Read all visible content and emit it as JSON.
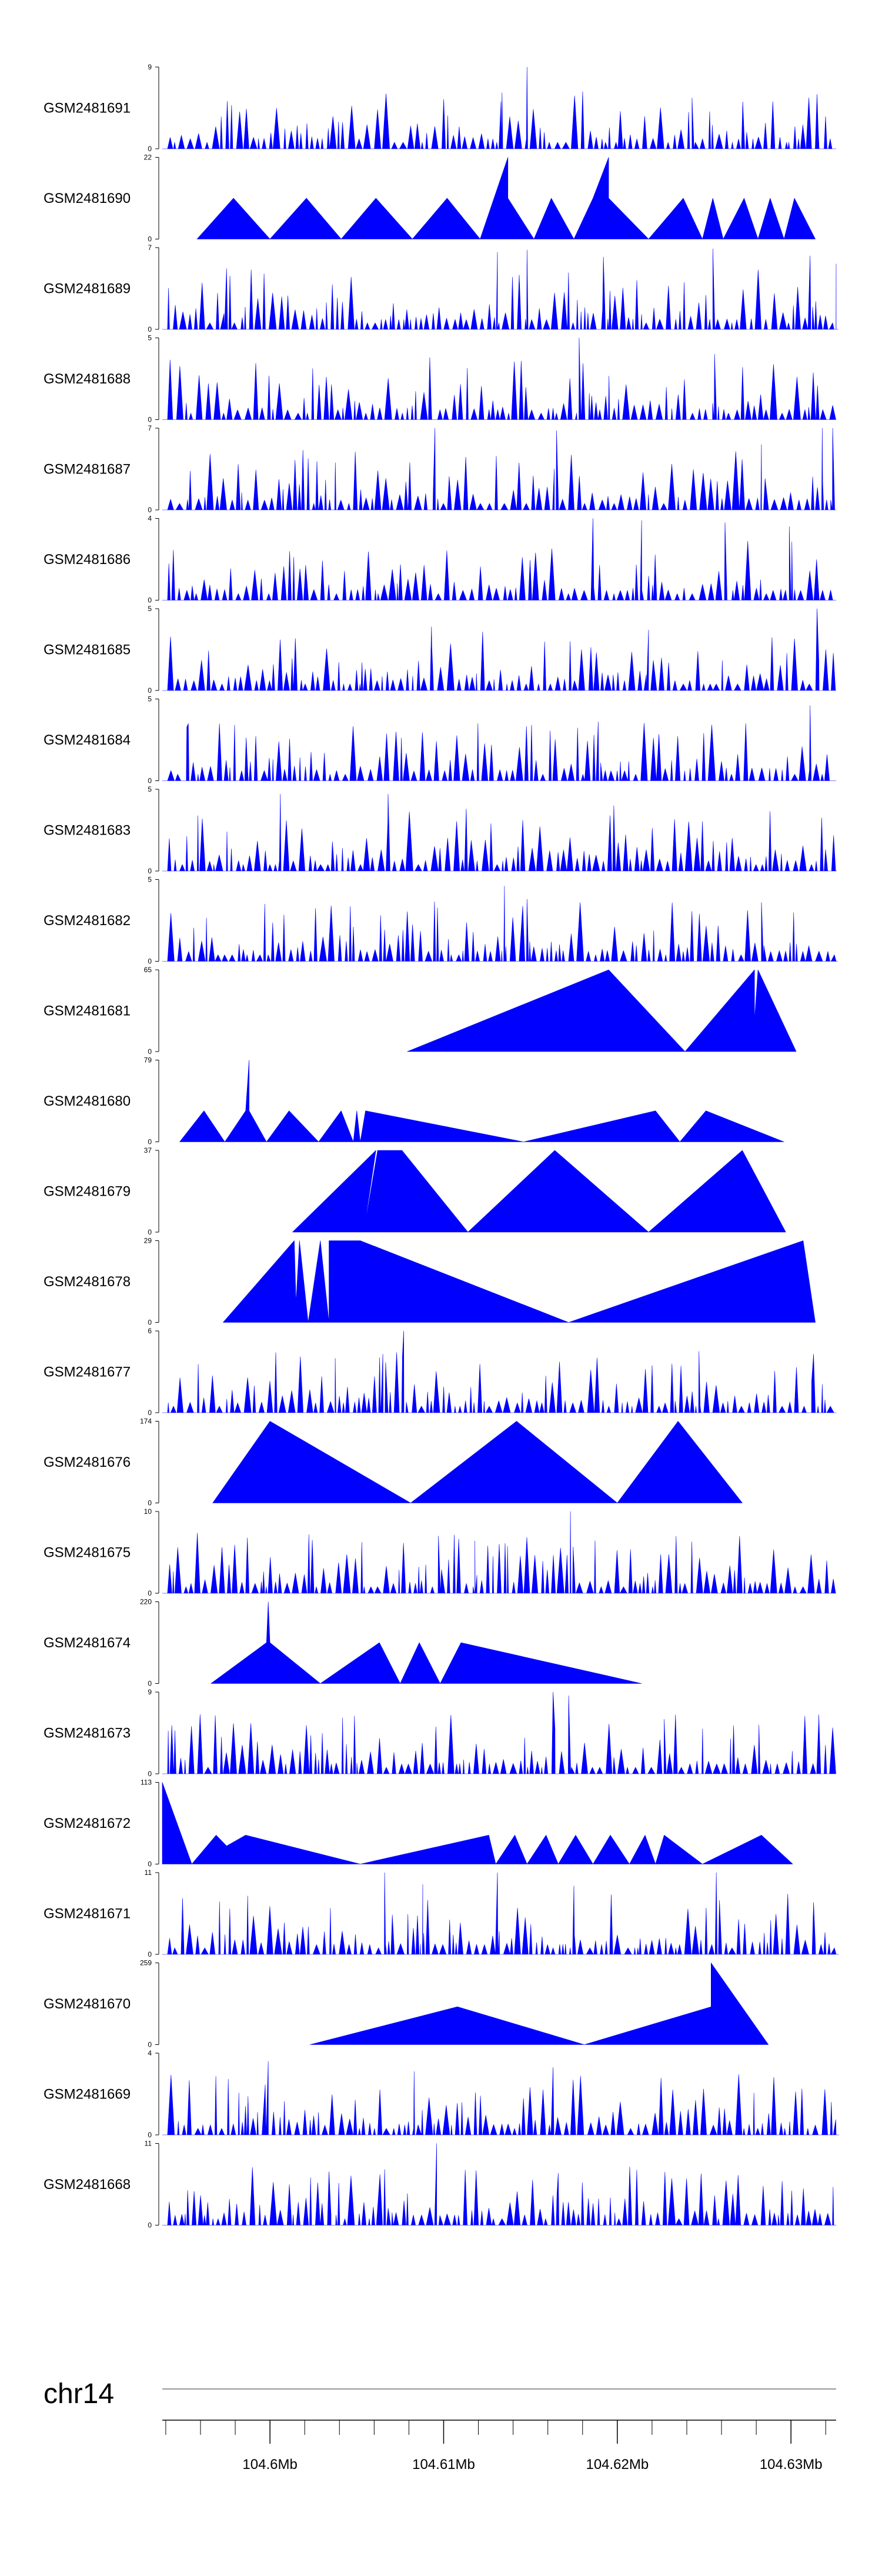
{
  "chart_data": {
    "type": "area",
    "title": "",
    "chromosome": "chr14",
    "x_unit": "Mb",
    "x_range": [
      104.5938,
      104.6326
    ],
    "x_ticks": [
      "104.6Mb",
      "104.61Mb",
      "104.62Mb",
      "104.63Mb"
    ],
    "x_tick_values": [
      104.6,
      104.61,
      104.62,
      104.63
    ],
    "minor_tick_step": 0.002,
    "colors": {
      "signal": "#0000ff",
      "axis": "#000000",
      "ideogram": "#999999"
    },
    "tracks": [
      {
        "name": "GSM2481691",
        "ymax": 9,
        "y0": "0",
        "y1": "9",
        "style": "noisy",
        "seed": 11,
        "peaks": [
          [
            104.6133,
            5.2
          ],
          [
            104.6148,
            9
          ],
          [
            104.6243,
            5.6
          ],
          [
            104.6315,
            6
          ]
        ]
      },
      {
        "name": "GSM2481690",
        "ymax": 22,
        "y0": "0",
        "y1": "22",
        "style": "triangles",
        "points": [
          [
            104.5958,
            0
          ],
          [
            104.5979,
            11
          ],
          [
            104.6,
            0
          ],
          [
            104.6021,
            11
          ],
          [
            104.6041,
            0
          ],
          [
            104.6061,
            11
          ],
          [
            104.6082,
            0
          ],
          [
            104.6102,
            11
          ],
          [
            104.6121,
            0
          ],
          [
            104.6137,
            22
          ],
          [
            104.6137,
            11
          ],
          [
            104.6152,
            0
          ],
          [
            104.6162,
            11
          ],
          [
            104.6175,
            0
          ],
          [
            104.6186,
            11
          ],
          [
            104.6195,
            22
          ],
          [
            104.6195,
            11
          ],
          [
            104.6218,
            0
          ],
          [
            104.6238,
            11
          ],
          [
            104.6249,
            0
          ],
          [
            104.6255,
            11
          ],
          [
            104.6261,
            0
          ],
          [
            104.6273,
            11
          ],
          [
            104.6281,
            0
          ],
          [
            104.6288,
            11
          ],
          [
            104.6296,
            0
          ],
          [
            104.6302,
            11
          ],
          [
            104.6314,
            0
          ]
        ]
      },
      {
        "name": "GSM2481689",
        "ymax": 7,
        "y0": "0",
        "y1": "7",
        "style": "noisy",
        "seed": 23,
        "peaks": [
          [
            104.5975,
            5.2
          ],
          [
            104.6131,
            6.6
          ],
          [
            104.6148,
            6.8
          ],
          [
            104.6192,
            6.2
          ],
          [
            104.6255,
            6.9
          ],
          [
            104.6311,
            6.3
          ],
          [
            104.6326,
            5.6
          ]
        ]
      },
      {
        "name": "GSM2481688",
        "ymax": 5,
        "y0": "0",
        "y1": "5",
        "style": "noisy",
        "seed": 37,
        "peaks": [
          [
            104.6178,
            5
          ],
          [
            104.6092,
            3.8
          ],
          [
            104.6256,
            4
          ]
        ]
      },
      {
        "name": "GSM2481687",
        "ymax": 7,
        "y0": "0",
        "y1": "7",
        "style": "noisy",
        "seed": 41,
        "peaks": [
          [
            104.6095,
            7
          ],
          [
            104.6165,
            6.8
          ],
          [
            104.6318,
            7
          ],
          [
            104.6324,
            7
          ],
          [
            104.6283,
            5.6
          ]
        ]
      },
      {
        "name": "GSM2481686",
        "ymax": 4,
        "y0": "0",
        "y1": "4",
        "style": "noisy",
        "seed": 53,
        "peaks": [
          [
            104.6186,
            4
          ],
          [
            104.6214,
            3.9
          ],
          [
            104.6262,
            3.8
          ],
          [
            104.6299,
            3.6
          ]
        ]
      },
      {
        "name": "GSM2481685",
        "ymax": 5,
        "y0": "0",
        "y1": "5",
        "style": "noisy",
        "seed": 67,
        "peaks": [
          [
            104.6315,
            5
          ],
          [
            104.6093,
            3.9
          ],
          [
            104.6218,
            3.7
          ]
        ]
      },
      {
        "name": "GSM2481684",
        "ymax": 5,
        "y0": "0",
        "y1": "5",
        "style": "noisy",
        "seed": 71,
        "peaks": [
          [
            104.6311,
            4.6
          ],
          [
            104.5953,
            3.5
          ],
          [
            104.6189,
            3.6
          ]
        ]
      },
      {
        "name": "GSM2481683",
        "ymax": 5,
        "y0": "0",
        "y1": "5",
        "style": "noisy",
        "seed": 83,
        "peaks": [
          [
            104.6006,
            4.7
          ],
          [
            104.6068,
            4.7
          ],
          [
            104.6198,
            4
          ],
          [
            104.6113,
            3.8
          ]
        ]
      },
      {
        "name": "GSM2481682",
        "ymax": 5,
        "y0": "0",
        "y1": "5",
        "style": "noisy",
        "seed": 97,
        "peaks": [
          [
            104.6135,
            4.6
          ],
          [
            104.5997,
            3.5
          ],
          [
            104.6148,
            3.8
          ],
          [
            104.6283,
            3.6
          ]
        ]
      },
      {
        "name": "GSM2481681",
        "ymax": 65,
        "y0": "0",
        "y1": "65",
        "style": "triangles",
        "points": [
          [
            104.6079,
            0
          ],
          [
            104.6195,
            65
          ],
          [
            104.6239,
            0
          ],
          [
            104.6279,
            65
          ],
          [
            104.6279,
            25
          ],
          [
            104.6281,
            65
          ],
          [
            104.6303,
            0
          ]
        ]
      },
      {
        "name": "GSM2481680",
        "ymax": 79,
        "y0": "0",
        "y1": "79",
        "style": "triangles",
        "points": [
          [
            104.5948,
            0
          ],
          [
            104.5962,
            30
          ],
          [
            104.5974,
            0
          ],
          [
            104.5986,
            30
          ],
          [
            104.5988,
            79
          ],
          [
            104.5988,
            30
          ],
          [
            104.5998,
            0
          ],
          [
            104.6011,
            30
          ],
          [
            104.6028,
            0
          ],
          [
            104.6041,
            30
          ],
          [
            104.6048,
            0
          ],
          [
            104.605,
            30
          ],
          [
            104.6052,
            0
          ],
          [
            104.6055,
            30
          ],
          [
            104.6146,
            0
          ],
          [
            104.6222,
            30
          ],
          [
            104.6236,
            0
          ],
          [
            104.6251,
            30
          ],
          [
            104.6296,
            0
          ]
        ]
      },
      {
        "name": "GSM2481679",
        "ymax": 37,
        "y0": "0",
        "y1": "37",
        "style": "triangles",
        "points": [
          [
            104.6013,
            0
          ],
          [
            104.6061,
            37
          ],
          [
            104.6054,
            0
          ],
          [
            104.6062,
            37
          ],
          [
            104.6076,
            37
          ],
          [
            104.6114,
            0
          ],
          [
            104.6164,
            37
          ],
          [
            104.6218,
            0
          ],
          [
            104.6272,
            37
          ],
          [
            104.6297,
            0
          ]
        ]
      },
      {
        "name": "GSM2481678",
        "ymax": 29,
        "y0": "0",
        "y1": "29",
        "style": "triangles",
        "points": [
          [
            104.5973,
            0
          ],
          [
            104.6014,
            29
          ],
          [
            104.6015,
            7
          ],
          [
            104.6017,
            29
          ],
          [
            104.6022,
            0
          ],
          [
            104.6029,
            29
          ],
          [
            104.6034,
            0
          ],
          [
            104.6034,
            29
          ],
          [
            104.6052,
            29
          ],
          [
            104.6172,
            0
          ],
          [
            104.6307,
            29
          ],
          [
            104.6314,
            0
          ]
        ]
      },
      {
        "name": "GSM2481677",
        "ymax": 6,
        "y0": "0",
        "y1": "6",
        "style": "noisy",
        "seed": 101,
        "peaks": [
          [
            104.6077,
            6
          ],
          [
            104.6065,
            4.3
          ],
          [
            104.6247,
            4.5
          ],
          [
            104.6313,
            4.3
          ]
        ]
      },
      {
        "name": "GSM2481676",
        "ymax": 174,
        "y0": "0",
        "y1": "174",
        "style": "triangles",
        "points": [
          [
            104.5967,
            0
          ],
          [
            104.6,
            174
          ],
          [
            104.6081,
            0
          ],
          [
            104.6142,
            174
          ],
          [
            104.62,
            0
          ],
          [
            104.6235,
            174
          ],
          [
            104.6272,
            0
          ]
        ]
      },
      {
        "name": "GSM2481675",
        "ymax": 10,
        "y0": "0",
        "y1": "10",
        "style": "noisy",
        "seed": 113,
        "peaks": [
          [
            104.6173,
            10
          ],
          [
            104.6097,
            7
          ],
          [
            104.6118,
            6.4
          ],
          [
            104.6132,
            6
          ]
        ]
      },
      {
        "name": "GSM2481674",
        "ymax": 220,
        "y0": "0",
        "y1": "220",
        "style": "triangles",
        "points": [
          [
            104.5966,
            0
          ],
          [
            104.5998,
            110
          ],
          [
            104.5999,
            220
          ],
          [
            104.6,
            110
          ],
          [
            104.6029,
            0
          ],
          [
            104.6063,
            110
          ],
          [
            104.6075,
            0
          ],
          [
            104.6086,
            110
          ],
          [
            104.6098,
            0
          ],
          [
            104.611,
            110
          ],
          [
            104.6214,
            0
          ]
        ]
      },
      {
        "name": "GSM2481673",
        "ymax": 9,
        "y0": "0",
        "y1": "9",
        "style": "noisy",
        "seed": 127,
        "peaks": [
          [
            104.6163,
            9
          ],
          [
            104.6172,
            8.6
          ],
          [
            104.6316,
            6.5
          ],
          [
            104.6227,
            6
          ]
        ]
      },
      {
        "name": "GSM2481672",
        "ymax": 113,
        "y0": "0",
        "y1": "113",
        "style": "triangles",
        "points": [
          [
            104.5938,
            0
          ],
          [
            104.5938,
            113
          ],
          [
            104.5955,
            0
          ],
          [
            104.5969,
            40
          ],
          [
            104.5975,
            25
          ],
          [
            104.5986,
            40
          ],
          [
            104.6052,
            0
          ],
          [
            104.6126,
            40
          ],
          [
            104.613,
            0
          ],
          [
            104.6141,
            40
          ],
          [
            104.6148,
            0
          ],
          [
            104.6159,
            40
          ],
          [
            104.6166,
            0
          ],
          [
            104.6176,
            40
          ],
          [
            104.6186,
            0
          ],
          [
            104.6196,
            40
          ],
          [
            104.6207,
            0
          ],
          [
            104.6216,
            40
          ],
          [
            104.6222,
            0
          ],
          [
            104.6227,
            40
          ],
          [
            104.6249,
            0
          ],
          [
            104.6283,
            40
          ],
          [
            104.6301,
            0
          ]
        ]
      },
      {
        "name": "GSM2481671",
        "ymax": 11,
        "y0": "0",
        "y1": "11",
        "style": "noisy",
        "seed": 139,
        "peaks": [
          [
            104.6066,
            11
          ],
          [
            104.6131,
            11
          ],
          [
            104.6257,
            11
          ],
          [
            104.6088,
            9.4
          ],
          [
            104.6175,
            9.2
          ],
          [
            104.6313,
            7
          ]
        ]
      },
      {
        "name": "GSM2481670",
        "ymax": 259,
        "y0": "0",
        "y1": "259",
        "style": "triangles",
        "points": [
          [
            104.6023,
            0
          ],
          [
            104.6108,
            120
          ],
          [
            104.6181,
            0
          ],
          [
            104.6254,
            120
          ],
          [
            104.6254,
            259
          ],
          [
            104.6287,
            0
          ]
        ]
      },
      {
        "name": "GSM2481669",
        "ymax": 4,
        "y0": "0",
        "y1": "4",
        "style": "noisy",
        "seed": 151,
        "peaks": [
          [
            104.5999,
            3.6
          ],
          [
            104.6163,
            3.3
          ],
          [
            104.6083,
            3.1
          ]
        ]
      },
      {
        "name": "GSM2481668",
        "ymax": 11,
        "y0": "0",
        "y1": "11",
        "style": "noisy",
        "seed": 163,
        "peaks": [
          [
            104.6096,
            11
          ],
          [
            104.6066,
            7.5
          ],
          [
            104.6034,
            7.2
          ],
          [
            104.6166,
            7
          ]
        ]
      }
    ]
  }
}
